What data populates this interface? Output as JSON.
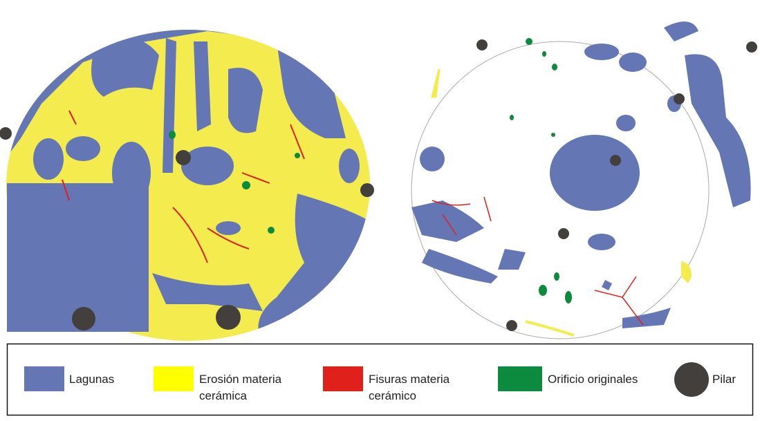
{
  "legend": {
    "items": [
      {
        "label": "Lagunas"
      },
      {
        "label": "Erosión materia cerámica"
      },
      {
        "label": "Fisuras materia cerámico"
      },
      {
        "label": "Orificio originales"
      },
      {
        "label": "Pilar"
      }
    ]
  }
}
